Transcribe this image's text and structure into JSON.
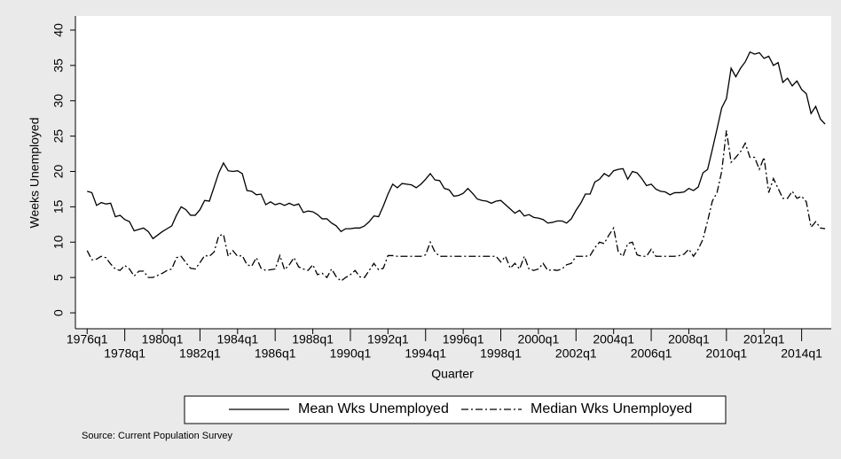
{
  "chart_data": {
    "type": "line",
    "y_label": "Weeks Unemployed",
    "x_label": "Quarter",
    "note": "Source: Current Population Survey",
    "legend_position": "bottom",
    "x": [
      64,
      65,
      66,
      67,
      68,
      69,
      70,
      71,
      72,
      73,
      74,
      75,
      76,
      77,
      78,
      79,
      80,
      81,
      82,
      83,
      84,
      85,
      86,
      87,
      88,
      89,
      90,
      91,
      92,
      93,
      94,
      95,
      96,
      97,
      98,
      99,
      100,
      101,
      102,
      103,
      104,
      105,
      106,
      107,
      108,
      109,
      110,
      111,
      112,
      113,
      114,
      115,
      116,
      117,
      118,
      119,
      120,
      121,
      122,
      123,
      124,
      125,
      126,
      127,
      128,
      129,
      130,
      131,
      132,
      133,
      134,
      135,
      136,
      137,
      138,
      139,
      140,
      141,
      142,
      143,
      144,
      145,
      146,
      147,
      148,
      149,
      150,
      151,
      152,
      153,
      154,
      155,
      156,
      157,
      158,
      159,
      160,
      161,
      162,
      163,
      164,
      165,
      166,
      167,
      168,
      169,
      170,
      171,
      172,
      173,
      174,
      175,
      176,
      177,
      178,
      179,
      180,
      181,
      182,
      183,
      184,
      185,
      186,
      187,
      188,
      189,
      190,
      191,
      192,
      193,
      194,
      195,
      196,
      197,
      198,
      199,
      200,
      201,
      202,
      203,
      204,
      205,
      206,
      207,
      208,
      209,
      210,
      211,
      212,
      213,
      214,
      215,
      216,
      217,
      218,
      219,
      220,
      221
    ],
    "series": [
      {
        "name": "Mean Wks Unemployed",
        "color": "#000000",
        "dash": "none",
        "values": [
          17.2,
          17.0,
          15.2,
          15.6,
          15.4,
          15.5,
          13.6,
          13.8,
          13.2,
          12.9,
          11.6,
          11.8,
          12.0,
          11.5,
          10.5,
          11.0,
          11.5,
          11.9,
          12.3,
          13.8,
          15.0,
          14.6,
          13.8,
          13.8,
          14.6,
          15.9,
          15.8,
          17.8,
          19.8,
          21.2,
          20.1,
          20.0,
          20.1,
          19.7,
          17.3,
          17.2,
          16.7,
          16.8,
          15.3,
          15.7,
          15.3,
          15.5,
          15.2,
          15.5,
          15.2,
          15.4,
          14.2,
          14.4,
          14.3,
          13.9,
          13.3,
          13.3,
          12.7,
          12.3,
          11.5,
          11.9,
          11.9,
          12.0,
          12.0,
          12.3,
          12.9,
          13.7,
          13.6,
          15.1,
          16.8,
          18.2,
          17.7,
          18.3,
          18.2,
          18.1,
          17.7,
          18.2,
          18.9,
          19.7,
          18.8,
          18.7,
          17.6,
          17.4,
          16.5,
          16.6,
          16.9,
          17.6,
          16.9,
          16.1,
          15.9,
          15.8,
          15.5,
          15.8,
          15.9,
          15.3,
          14.7,
          14.1,
          14.5,
          13.7,
          13.9,
          13.5,
          13.4,
          13.2,
          12.7,
          12.8,
          13.0,
          13.0,
          12.7,
          13.3,
          14.5,
          15.5,
          16.8,
          16.8,
          18.5,
          18.9,
          19.7,
          19.3,
          20.1,
          20.3,
          20.4,
          18.9,
          20.0,
          19.8,
          19.0,
          18.0,
          18.2,
          17.5,
          17.2,
          17.1,
          16.7,
          17.0,
          17.0,
          17.1,
          17.6,
          17.3,
          17.8,
          19.8,
          20.3,
          23.1,
          26.0,
          29.0,
          30.3,
          34.6,
          33.4,
          34.6,
          35.5,
          36.9,
          36.6,
          36.8,
          36.0,
          36.3,
          35.0,
          35.4,
          32.6,
          33.2,
          32.1,
          32.8,
          31.6,
          31.0,
          28.2,
          29.2,
          27.4,
          26.7
        ]
      },
      {
        "name": "Median Wks Unemployed",
        "color": "#000000",
        "dash": "8,3,2,3",
        "values": [
          8.8,
          7.5,
          7.6,
          8.0,
          7.8,
          6.9,
          6.2,
          6.0,
          6.7,
          6.2,
          5.2,
          5.9,
          5.9,
          5.0,
          5.0,
          5.3,
          5.6,
          6.0,
          6.2,
          7.8,
          8.0,
          7.1,
          6.3,
          6.2,
          7.1,
          8.1,
          8.0,
          8.6,
          10.9,
          11.1,
          8.0,
          8.8,
          8.0,
          8.1,
          6.8,
          6.6,
          7.8,
          6.3,
          6.0,
          6.1,
          6.2,
          8.1,
          6.1,
          6.8,
          7.8,
          6.5,
          6.2,
          6.0,
          6.8,
          5.4,
          5.6,
          5.0,
          6.2,
          5.1,
          4.5,
          5.0,
          5.4,
          6.0,
          5.1,
          5.0,
          6.0,
          7.0,
          6.1,
          6.3,
          8.1,
          8.1,
          8.0,
          8.0,
          8.0,
          8.0,
          8.0,
          8.0,
          8.2,
          10.0,
          8.6,
          8.0,
          8.0,
          8.0,
          8.0,
          8.0,
          8.0,
          8.0,
          8.0,
          8.0,
          8.0,
          8.0,
          8.0,
          8.0,
          7.2,
          8.0,
          6.3,
          7.0,
          6.2,
          8.0,
          6.2,
          6.0,
          6.2,
          7.0,
          6.0,
          6.1,
          6.0,
          6.2,
          6.8,
          7.0,
          8.0,
          8.0,
          8.0,
          8.1,
          9.2,
          10.0,
          9.8,
          11.0,
          12.0,
          8.6,
          8.0,
          9.8,
          10.0,
          8.2,
          8.0,
          8.0,
          9.0,
          8.0,
          8.0,
          8.0,
          8.0,
          8.0,
          8.1,
          8.3,
          9.0,
          8.0,
          9.0,
          10.4,
          13.0,
          15.8,
          17.0,
          20.0,
          25.8,
          21.3,
          22.0,
          22.8,
          24.0,
          22.0,
          22.0,
          20.3,
          22.0,
          17.0,
          19.0,
          17.6,
          16.2,
          16.2,
          17.2,
          16.2,
          16.5,
          15.7,
          12.1,
          12.9,
          12.0,
          11.9
        ]
      }
    ],
    "xlim": [
      61.5,
      222.3
    ],
    "ylim": [
      -2.25,
      42
    ],
    "yticks": [
      0,
      5,
      10,
      15,
      20,
      25,
      30,
      35,
      40
    ],
    "xticks": [
      {
        "value": 64,
        "label": "1976q1"
      },
      {
        "value": 72,
        "label": "1978q1"
      },
      {
        "value": 80,
        "label": "1980q1"
      },
      {
        "value": 88,
        "label": "1982q1"
      },
      {
        "value": 96,
        "label": "1984q1"
      },
      {
        "value": 104,
        "label": "1986q1"
      },
      {
        "value": 112,
        "label": "1988q1"
      },
      {
        "value": 120,
        "label": "1990q1"
      },
      {
        "value": 128,
        "label": "1992q1"
      },
      {
        "value": 136,
        "label": "1994q1"
      },
      {
        "value": 144,
        "label": "1996q1"
      },
      {
        "value": 152,
        "label": "1998q1"
      },
      {
        "value": 160,
        "label": "2000q1"
      },
      {
        "value": 168,
        "label": "2002q1"
      },
      {
        "value": 176,
        "label": "2004q1"
      },
      {
        "value": 184,
        "label": "2006q1"
      },
      {
        "value": 192,
        "label": "2008q1"
      },
      {
        "value": 200,
        "label": "2010q1"
      },
      {
        "value": 208,
        "label": "2012q1"
      },
      {
        "value": 216,
        "label": "2014q1"
      }
    ]
  }
}
